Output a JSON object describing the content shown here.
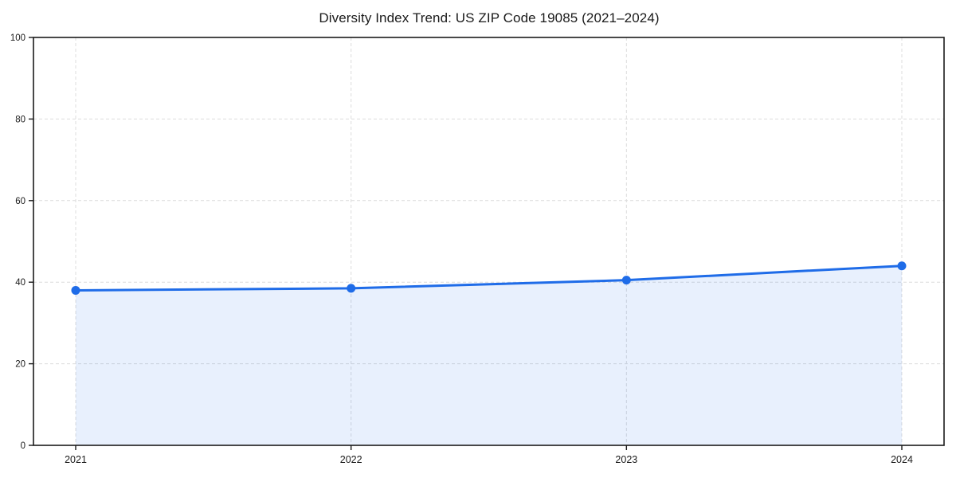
{
  "chart_data": {
    "type": "line",
    "title": "Diversity Index Trend: US ZIP Code 19085 (2021–2024)",
    "categories": [
      "2021",
      "2022",
      "2023",
      "2024"
    ],
    "series": [
      {
        "name": "Diversity Index",
        "values": [
          38,
          38.5,
          40.5,
          44
        ]
      }
    ],
    "xlabel": "",
    "ylabel": "",
    "ylim": [
      0,
      100
    ],
    "y_ticks": [
      0,
      20,
      40,
      60,
      80,
      100
    ],
    "grid": "dashed",
    "legend": "none",
    "area_fill": true,
    "marker": "circle",
    "colors": {
      "line": "#1f6ce8",
      "fill": "rgba(31,108,232,0.10)",
      "grid": "#dcdcdc",
      "axis": "#1a1a1a",
      "text": "#1a1a1a",
      "background": "#ffffff"
    }
  }
}
